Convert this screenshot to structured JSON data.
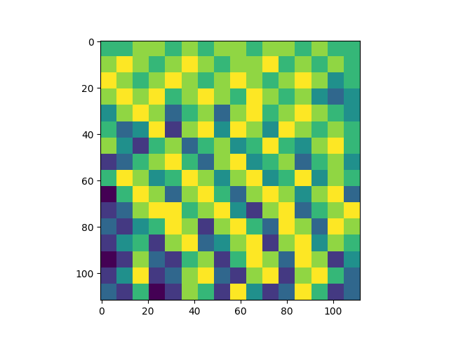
{
  "chart_data": {
    "type": "heatmap",
    "color": "viridis",
    "xlim": [
      -0.5,
      111.5
    ],
    "ylim": [
      111.5,
      -0.5
    ],
    "xticks": [
      0,
      20,
      40,
      60,
      80,
      100
    ],
    "yticks": [
      0,
      20,
      40,
      60,
      80,
      100
    ],
    "cells": [
      [
        5,
        5,
        6,
        6,
        5,
        6,
        5,
        6,
        6,
        5,
        6,
        6,
        5,
        6,
        5,
        5
      ],
      [
        6,
        7,
        6,
        5,
        6,
        7,
        6,
        5,
        6,
        6,
        7,
        5,
        6,
        5,
        6,
        5
      ],
      [
        7,
        6,
        5,
        6,
        7,
        6,
        5,
        6,
        7,
        6,
        5,
        6,
        7,
        6,
        4,
        5
      ],
      [
        6,
        7,
        6,
        7,
        5,
        6,
        7,
        6,
        5,
        7,
        6,
        5,
        6,
        4,
        3,
        4
      ],
      [
        4,
        6,
        7,
        6,
        3,
        5,
        6,
        3,
        6,
        7,
        5,
        6,
        7,
        6,
        5,
        4
      ],
      [
        5,
        3,
        4,
        7,
        2,
        6,
        7,
        4,
        7,
        6,
        4,
        7,
        6,
        5,
        6,
        5
      ],
      [
        6,
        4,
        2,
        5,
        6,
        3,
        5,
        6,
        4,
        5,
        7,
        5,
        4,
        6,
        7,
        5
      ],
      [
        2,
        3,
        5,
        6,
        7,
        5,
        3,
        6,
        7,
        4,
        5,
        6,
        3,
        5,
        6,
        4
      ],
      [
        5,
        7,
        6,
        4,
        5,
        7,
        6,
        4,
        6,
        7,
        4,
        5,
        7,
        4,
        6,
        5
      ],
      [
        1,
        5,
        7,
        6,
        3,
        6,
        7,
        5,
        3,
        6,
        7,
        6,
        4,
        6,
        7,
        3
      ],
      [
        2,
        3,
        6,
        7,
        7,
        5,
        6,
        7,
        4,
        2,
        6,
        7,
        3,
        5,
        6,
        7
      ],
      [
        3,
        2,
        4,
        5,
        7,
        6,
        2,
        6,
        7,
        5,
        3,
        7,
        6,
        3,
        7,
        6
      ],
      [
        2,
        4,
        5,
        2,
        6,
        7,
        3,
        4,
        6,
        7,
        2,
        6,
        7,
        4,
        6,
        5
      ],
      [
        1,
        2,
        6,
        3,
        2,
        5,
        6,
        2,
        5,
        7,
        6,
        3,
        7,
        6,
        2,
        4
      ],
      [
        2,
        4,
        7,
        2,
        3,
        6,
        7,
        3,
        2,
        6,
        7,
        2,
        6,
        7,
        5,
        3
      ],
      [
        3,
        2,
        5,
        1,
        2,
        6,
        5,
        2,
        7,
        4,
        2,
        3,
        7,
        5,
        2,
        3
      ]
    ]
  }
}
